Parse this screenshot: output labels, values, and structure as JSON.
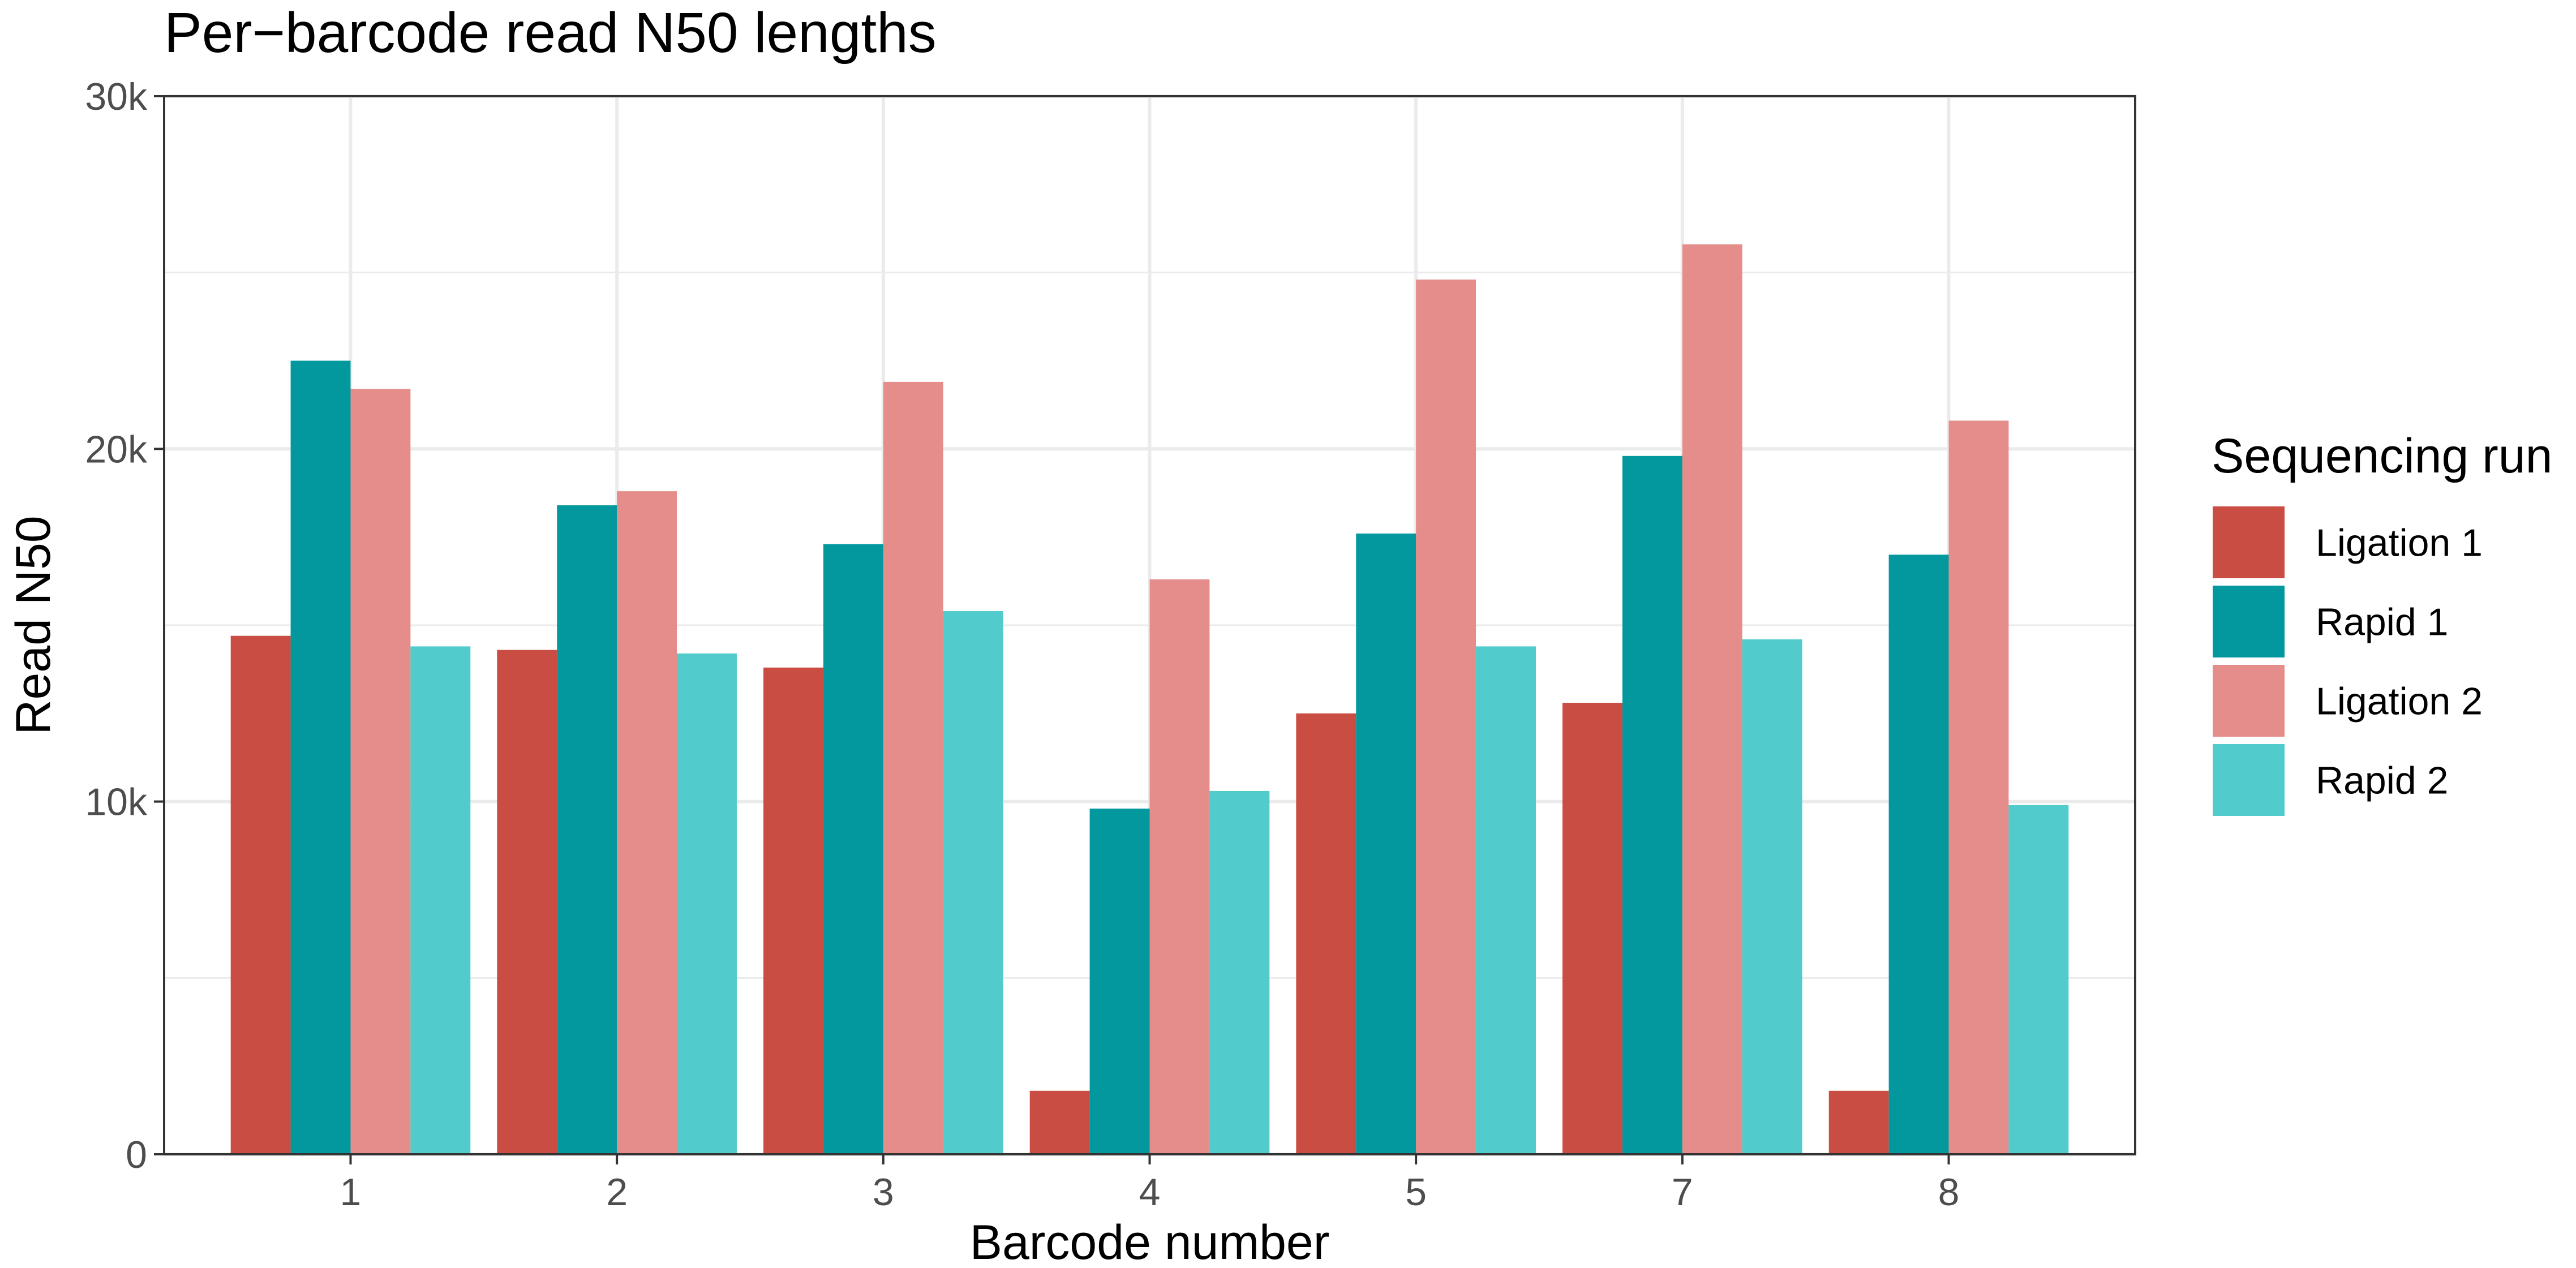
{
  "chart_data": {
    "type": "bar",
    "title": "Per−barcode read N50 lengths",
    "xlabel": "Barcode number",
    "ylabel": "Read N50",
    "categories": [
      "1",
      "2",
      "3",
      "4",
      "5",
      "7",
      "8"
    ],
    "ylim": [
      0,
      30000
    ],
    "yticks": [
      {
        "value": 0,
        "label": "0"
      },
      {
        "value": 10000,
        "label": "10k"
      },
      {
        "value": 20000,
        "label": "20k"
      },
      {
        "value": 30000,
        "label": "30k"
      }
    ],
    "grid": true,
    "legend": {
      "title": "Sequencing run",
      "placement": "right"
    },
    "series": [
      {
        "name": "Ligation 1",
        "color": "#C94D42",
        "values": [
          14700,
          14300,
          13800,
          1800,
          12500,
          12800,
          1800
        ]
      },
      {
        "name": "Rapid 1",
        "color": "#03989E",
        "values": [
          22500,
          18400,
          17300,
          9800,
          17600,
          19800,
          17000
        ]
      },
      {
        "name": "Ligation 2",
        "color": "#E48D8A",
        "values": [
          21700,
          18800,
          21900,
          16300,
          24800,
          25800,
          20800
        ]
      },
      {
        "name": "Rapid 2",
        "color": "#51CBCB",
        "values": [
          14400,
          14200,
          15400,
          10300,
          14400,
          14600,
          9900
        ]
      }
    ]
  }
}
